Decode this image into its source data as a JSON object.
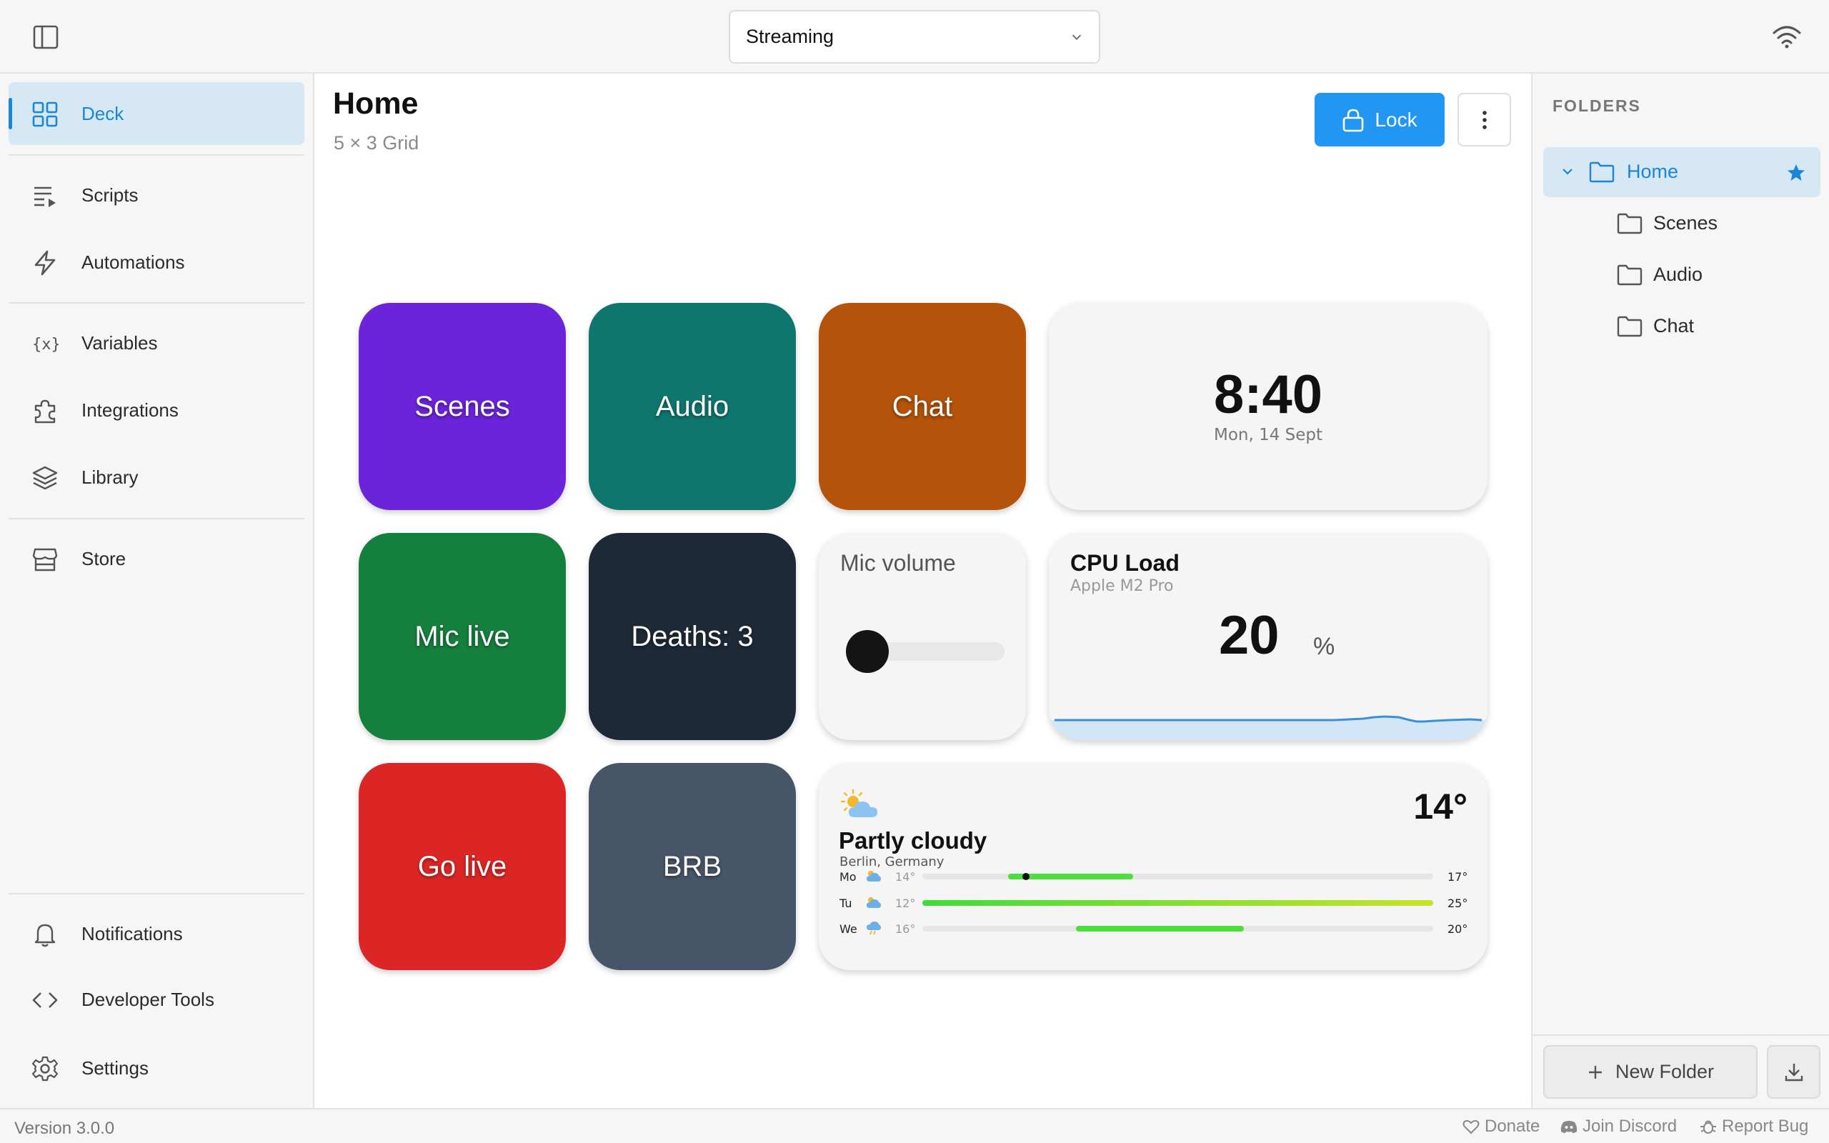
{
  "profile": {
    "selected": "Streaming"
  },
  "nav": {
    "deck": "Deck",
    "scripts": "Scripts",
    "automations": "Automations",
    "variables": "Variables",
    "integrations": "Integrations",
    "library": "Library",
    "store": "Store",
    "notifications": "Notifications",
    "developer_tools": "Developer Tools",
    "settings": "Settings"
  },
  "page": {
    "title": "Home",
    "subtitle": "5 × 3 Grid",
    "lock_label": "Lock"
  },
  "tiles": {
    "scenes": {
      "label": "Scenes",
      "color": "#6b24d9"
    },
    "audio": {
      "label": "Audio",
      "color": "#0f766e"
    },
    "chat": {
      "label": "Chat",
      "color": "#b45309"
    },
    "mic_live": {
      "label": "Mic live",
      "color": "#15803d"
    },
    "deaths": {
      "label": "Deaths: 3",
      "color": "#1e2938"
    },
    "go_live": {
      "label": "Go live",
      "color": "#dc2626"
    },
    "brb": {
      "label": "BRB",
      "color": "#475569"
    }
  },
  "clock": {
    "time": "8:40",
    "date": "Mon, 14 Sept"
  },
  "mic_volume": {
    "title": "Mic volume",
    "level": 0
  },
  "cpu": {
    "title": "CPU Load",
    "subtitle": "Apple M2 Pro",
    "value": "20",
    "unit": "%"
  },
  "weather": {
    "temp": "14°",
    "condition": "Partly cloudy",
    "location": "Berlin, Germany",
    "days": [
      {
        "day": "Mo",
        "low": "14°",
        "high": "17°"
      },
      {
        "day": "Tu",
        "low": "12°",
        "high": "25°"
      },
      {
        "day": "We",
        "low": "16°",
        "high": "20°"
      }
    ]
  },
  "folders": {
    "title": "FOLDERS",
    "items": [
      "Home",
      "Scenes",
      "Audio",
      "Chat"
    ],
    "new_folder": "New Folder"
  },
  "footer": {
    "version": "Version 3.0.0",
    "donate": "Donate",
    "discord": "Join Discord",
    "report_bug": "Report Bug"
  },
  "colors": {
    "accent": "#2196f3",
    "active_bg": "#d7e8f5",
    "active_text": "#1a86d9"
  }
}
